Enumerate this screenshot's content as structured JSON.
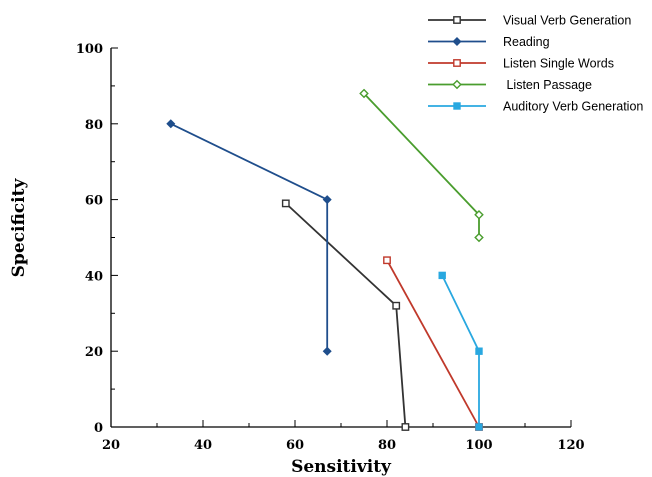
{
  "chart_data": {
    "type": "line",
    "xlabel": "Sensitivity",
    "ylabel": "Specificity",
    "xlim": [
      20,
      120
    ],
    "ylim": [
      0,
      100
    ],
    "xticks": [
      20,
      40,
      60,
      80,
      100,
      120
    ],
    "yticks": [
      0,
      20,
      40,
      60,
      80,
      100
    ],
    "grid": false,
    "legend_position": "top-right",
    "series": [
      {
        "name": "Visual Verb Generation",
        "color": "#333333",
        "marker": "open-square",
        "points": [
          [
            58,
            59
          ],
          [
            82,
            32
          ],
          [
            84,
            0
          ]
        ]
      },
      {
        "name": "Reading",
        "color": "#1f4e8c",
        "marker": "filled-diamond",
        "points": [
          [
            33,
            80
          ],
          [
            67,
            60
          ],
          [
            67,
            20
          ]
        ]
      },
      {
        "name": "Listen Single Words",
        "color": "#c0392b",
        "marker": "open-square",
        "points": [
          [
            80,
            44
          ],
          [
            100,
            0
          ]
        ]
      },
      {
        "name": " Listen Passage",
        "color": "#4a9d2e",
        "marker": "open-diamond",
        "points": [
          [
            75,
            88
          ],
          [
            100,
            56
          ],
          [
            100,
            50
          ]
        ]
      },
      {
        "name": "Auditory Verb Generation",
        "color": "#29a8e0",
        "marker": "filled-square",
        "points": [
          [
            92,
            40
          ],
          [
            100,
            20
          ],
          [
            100,
            0
          ]
        ]
      }
    ]
  }
}
